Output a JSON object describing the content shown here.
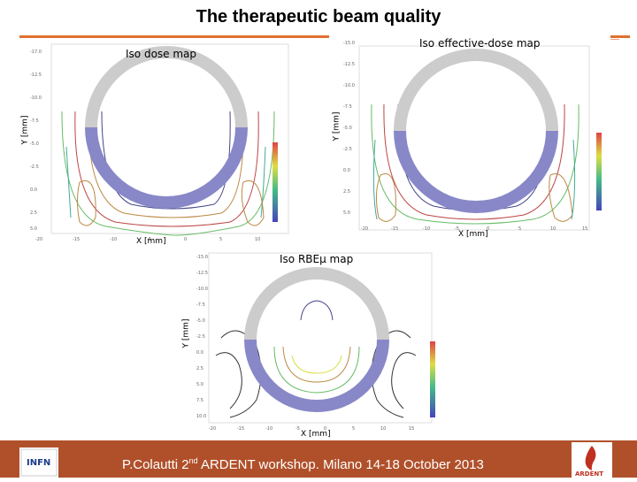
{
  "slide": {
    "title": "The therapeutic beam quality"
  },
  "panels": {
    "dose": {
      "label": "Iso dose map",
      "ylabel": "Y [mm]",
      "xlabel": "X [mm]"
    },
    "effective": {
      "label": "Iso effective-dose map",
      "ylabel": "Y [mm]",
      "xlabel": "X [mm]"
    },
    "rbe": {
      "label": "Iso RBEμ map",
      "ylabel": "Y [mm]",
      "xlabel": "X [mm]"
    }
  },
  "footer": {
    "text_pre": "P.Colautti 2",
    "text_sup": "nd",
    "text_post": " ARDENT workshop. Milano 14-18 October 2013",
    "left_logo_text": "INFN",
    "right_logo_text": "ARDENT"
  },
  "colors": {
    "accent": "#e07030",
    "footer": "#b0502a",
    "ring_upper": "#cccccc",
    "ring_lower": "#8888c8"
  }
}
